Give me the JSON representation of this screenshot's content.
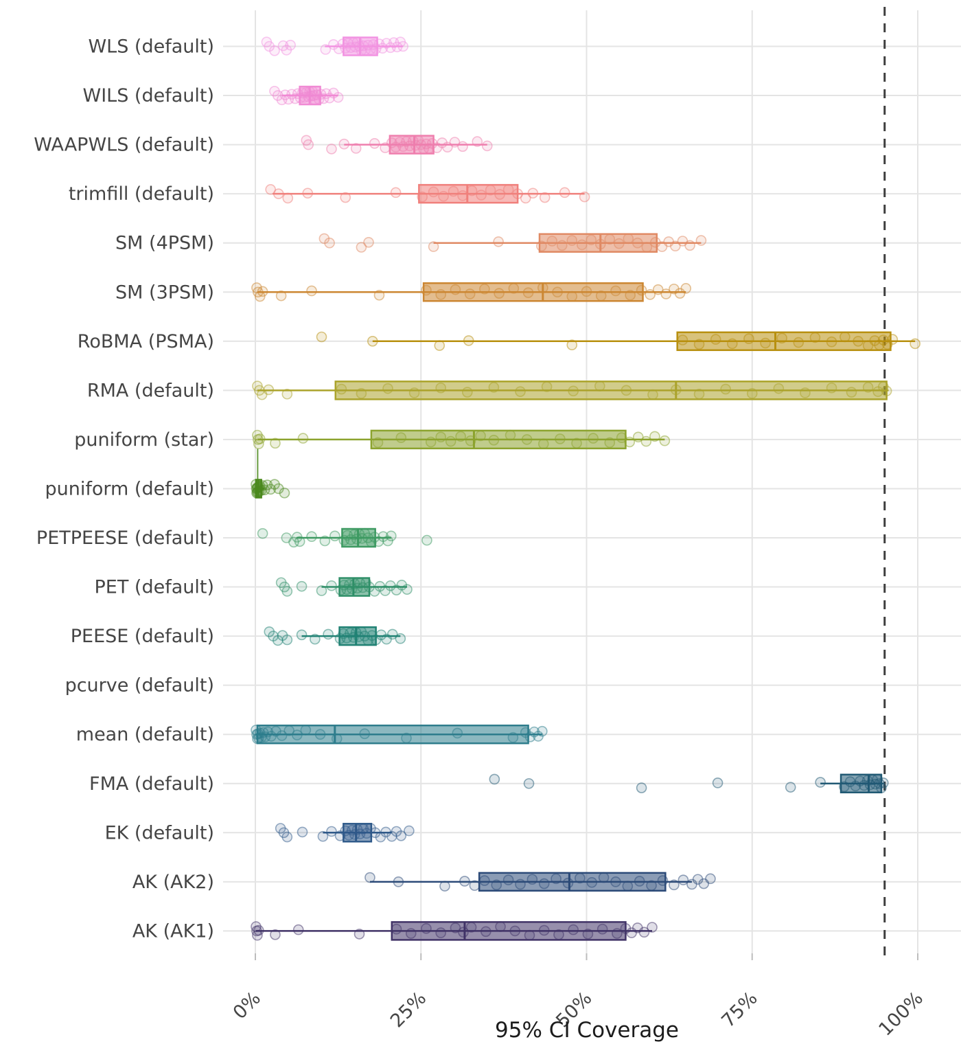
{
  "chart_data": {
    "type": "boxplot",
    "orientation": "horizontal",
    "title": "",
    "xlabel": "95% CI Coverage",
    "ylabel": "",
    "xlim": [
      0,
      100
    ],
    "grid": true,
    "x_ticks": [
      {
        "value": 0,
        "label": "0%"
      },
      {
        "value": 25,
        "label": "25%"
      },
      {
        "value": 50,
        "label": "50%"
      },
      {
        "value": 75,
        "label": "75%"
      },
      {
        "value": 100,
        "label": "100%"
      }
    ],
    "reference_line": {
      "value": 95,
      "style": "dashed"
    },
    "style": {
      "background": "#ffffff",
      "grid_color": "#e4e4e4",
      "tick_color": "#bdbdbd",
      "refline_color": "#3d3d3d",
      "axis_text_color": "#454545",
      "title_color": "#1c1c1c"
    },
    "rows": [
      {
        "label": "WLS (default)",
        "color": "#F293E2",
        "box": {
          "lo": 10.5,
          "q1": 13.3,
          "median": 15.8,
          "q3": 18.4,
          "hi": 22.3
        },
        "points": [
          1.7,
          2.1,
          2.9,
          4.2,
          4.7,
          5.3,
          10.6,
          11.8,
          12.6,
          13.2,
          13.6,
          14,
          14.4,
          14.8,
          15.1,
          15.4,
          15.7,
          16,
          16.3,
          16.6,
          17,
          17.4,
          17.8,
          18.2,
          18.7,
          19.2,
          19.8,
          20.4,
          20.9,
          21.4,
          21.9,
          22.3
        ]
      },
      {
        "label": "WILS (default)",
        "color": "#F08AD4",
        "box": {
          "lo": 4.0,
          "q1": 6.7,
          "median": 8.2,
          "q3": 9.8,
          "hi": 12.5
        },
        "points": [
          2.9,
          3.4,
          4,
          4.5,
          5,
          5.5,
          6,
          6.4,
          6.8,
          7.1,
          7.4,
          7.7,
          8,
          8.2,
          8.4,
          8.6,
          8.8,
          9,
          9.3,
          9.6,
          9.9,
          10.3,
          10.7,
          11.2,
          11.8,
          12.5
        ]
      },
      {
        "label": "WAAPWLS (default)",
        "color": "#EF7FAE",
        "box": {
          "lo": 13.4,
          "q1": 20.3,
          "median": 24.0,
          "q3": 26.9,
          "hi": 35.0
        },
        "points": [
          7.7,
          8,
          11.5,
          13.4,
          15.2,
          18,
          19.6,
          20.6,
          21.2,
          21.8,
          22.3,
          22.8,
          23.3,
          23.8,
          24.2,
          24.6,
          25,
          25.4,
          25.8,
          26.2,
          26.7,
          27.4,
          28.2,
          29,
          30.1,
          31.3,
          33.5,
          35
        ]
      },
      {
        "label": "trimfill (default)",
        "color": "#F0807C",
        "box": {
          "lo": 2.6,
          "q1": 24.7,
          "median": 32.0,
          "q3": 39.6,
          "hi": 49.7
        },
        "points": [
          2.3,
          3.5,
          4.9,
          7.9,
          13.6,
          21.2,
          25.2,
          26.9,
          28.4,
          29.9,
          31.3,
          32.7,
          34.1,
          35.5,
          36.9,
          38.2,
          39.6,
          40.8,
          41.9,
          43.7,
          46.7,
          49.7
        ]
      },
      {
        "label": "SM (4PSM)",
        "color": "#E08A64",
        "box": {
          "lo": 26.9,
          "q1": 42.9,
          "median": 52.1,
          "q3": 60.6,
          "hi": 67.3
        },
        "points": [
          10.4,
          11.2,
          16,
          17.1,
          26.9,
          36.7,
          43.2,
          44.8,
          46.3,
          47.8,
          49.3,
          50.7,
          52.1,
          53.5,
          54.9,
          56.3,
          57.7,
          59.1,
          60.4,
          61.4,
          62.4,
          63.4,
          64.5,
          65.6,
          67.3
        ]
      },
      {
        "label": "SM (3PSM)",
        "color": "#CC8733",
        "box": {
          "lo": 0.3,
          "q1": 25.4,
          "median": 43.4,
          "q3": 58.5,
          "hi": 65.0
        },
        "points": [
          0.2,
          0.4,
          0.7,
          1.1,
          3.9,
          8.5,
          18.7,
          25.8,
          28,
          30.2,
          32.4,
          34.6,
          36.8,
          39,
          41.2,
          43.4,
          45.6,
          47.8,
          50,
          52.2,
          54.4,
          56.6,
          58.3,
          59.6,
          60.8,
          62,
          63.2,
          64.1,
          65
        ]
      },
      {
        "label": "RoBMA (PSMA)",
        "color": "#B8900F",
        "box": {
          "lo": 17.7,
          "q1": 63.7,
          "median": 78.5,
          "q3": 95.9,
          "hi": 99.6
        },
        "points": [
          10,
          17.7,
          27.8,
          32.2,
          47.8,
          64.5,
          67,
          69.5,
          72,
          74.5,
          77,
          79.5,
          82,
          84.5,
          87,
          89,
          91,
          92.5,
          93.5,
          94.2,
          94.8,
          95.4,
          96.2,
          99.6
        ]
      },
      {
        "label": "RMA (default)",
        "color": "#ABA32B",
        "box": {
          "lo": 0.3,
          "q1": 12.1,
          "median": 63.5,
          "q3": 95.3,
          "hi": 95.6
        },
        "points": [
          0.3,
          0.6,
          1,
          2,
          4.8,
          13,
          16,
          20,
          24,
          28,
          32,
          36,
          40,
          44,
          48,
          52,
          56,
          60,
          63.5,
          67,
          71,
          75,
          79,
          83,
          87,
          90,
          92.5,
          94,
          94.8,
          95.3
        ]
      },
      {
        "label": "puniform (star)",
        "color": "#8CA32E",
        "box": {
          "lo": 0.4,
          "q1": 17.5,
          "median": 33.0,
          "q3": 55.9,
          "hi": 61.8
        },
        "points": [
          0.3,
          0.4,
          0.5,
          0.7,
          3,
          7.2,
          18.5,
          22,
          26.5,
          28,
          29.5,
          31,
          32.5,
          34,
          36,
          38.5,
          41,
          43.5,
          46,
          48.5,
          51,
          53.5,
          55.3,
          56.5,
          57.8,
          59,
          60.3,
          61.8
        ]
      },
      {
        "label": "puniform (default)",
        "color": "#4C8A1D",
        "spike": true,
        "box": {
          "lo": 0.0,
          "q1": 0.1,
          "median": 0.4,
          "q3": 0.9,
          "hi": 1.4
        },
        "points": [
          0.1,
          0.15,
          0.2,
          0.25,
          0.3,
          0.35,
          0.4,
          0.5,
          0.6,
          0.7,
          0.9,
          1.1,
          1.4,
          1.8,
          2.3,
          2.9,
          3.5,
          4.4
        ]
      },
      {
        "label": "PETPEESE (default)",
        "color": "#3E9A62",
        "box": {
          "lo": 6.2,
          "q1": 13.1,
          "median": 15.5,
          "q3": 18.1,
          "hi": 20.5
        },
        "points": [
          1.1,
          4.7,
          5.8,
          6.3,
          6.7,
          8.5,
          10.5,
          12,
          13.4,
          13.9,
          14.4,
          14.9,
          15.3,
          15.7,
          16.1,
          16.5,
          17,
          17.5,
          18,
          18.6,
          19.3,
          20,
          20.5,
          25.9
        ]
      },
      {
        "label": "PET (default)",
        "color": "#2F8F68",
        "box": {
          "lo": 10.0,
          "q1": 12.7,
          "median": 14.8,
          "q3": 17.2,
          "hi": 22.9
        },
        "points": [
          3.9,
          4.4,
          4.8,
          7,
          10,
          11.5,
          12.9,
          13.4,
          13.8,
          14.2,
          14.6,
          15,
          15.4,
          15.8,
          16.2,
          16.7,
          17.2,
          18,
          18.8,
          19.6,
          20.4,
          21.3,
          22.1,
          22.9
        ]
      },
      {
        "label": "PEESE (default)",
        "color": "#218274",
        "box": {
          "lo": 7.0,
          "q1": 12.7,
          "median": 15.2,
          "q3": 18.2,
          "hi": 21.9
        },
        "points": [
          2.1,
          2.7,
          3.4,
          4.1,
          4.8,
          7,
          9,
          11,
          12.8,
          13.3,
          13.8,
          14.3,
          14.8,
          15.2,
          15.6,
          16,
          16.5,
          17,
          17.6,
          18.2,
          19,
          19.8,
          20.7,
          21.9
        ]
      },
      {
        "label": "pcurve (default)",
        "color": "#1E827E",
        "box": null,
        "points": []
      },
      {
        "label": "mean (default)",
        "color": "#2E7D8C",
        "box": {
          "lo": 0.1,
          "q1": 0.3,
          "median": 12.0,
          "q3": 41.2,
          "hi": 43.3
        },
        "points": [
          0.1,
          0.2,
          0.3,
          0.4,
          0.5,
          0.7,
          0.9,
          1.2,
          1.5,
          1.9,
          2.4,
          3.1,
          4,
          5.1,
          6.3,
          7.6,
          9.8,
          12.3,
          16.5,
          22.8,
          30.5,
          38.9,
          40.8,
          41.5,
          42.1,
          42.7,
          43.3
        ]
      },
      {
        "label": "FMA (default)",
        "color": "#215A74",
        "box": {
          "lo": 85.3,
          "q1": 88.4,
          "median": 92.6,
          "q3": 94.5,
          "hi": 94.8
        },
        "points": [
          36.1,
          41.3,
          58.3,
          69.8,
          80.8,
          85.3,
          88.9,
          89.8,
          90.6,
          91.3,
          91.9,
          92.4,
          92.8,
          93.2,
          93.6,
          93.9,
          94.2,
          94.5,
          94.8
        ]
      },
      {
        "label": "EK (default)",
        "color": "#2F5A8A",
        "box": {
          "lo": 10.2,
          "q1": 13.3,
          "median": 15.2,
          "q3": 17.5,
          "hi": 20.6
        },
        "points": [
          3.8,
          4.3,
          4.8,
          7.1,
          10.2,
          11.5,
          12.8,
          13.6,
          14.1,
          14.6,
          15,
          15.4,
          15.8,
          16.3,
          16.8,
          17.4,
          18.1,
          18.9,
          19.7,
          20.6,
          21.3,
          22,
          23.2
        ]
      },
      {
        "label": "AK (AK2)",
        "color": "#2B4A78",
        "box": {
          "lo": 17.3,
          "q1": 33.8,
          "median": 47.4,
          "q3": 61.9,
          "hi": 65.9
        },
        "points": [
          17.3,
          21.6,
          28.6,
          31.6,
          33.1,
          34.6,
          36.4,
          38.2,
          40,
          41.8,
          43.6,
          45.4,
          47.2,
          49,
          50.8,
          52.6,
          54.4,
          56.2,
          58,
          59.8,
          61.5,
          63.2,
          64.6,
          65.9,
          66.8,
          67.7,
          68.7
        ]
      },
      {
        "label": "AK (AK1)",
        "color": "#413367",
        "box": {
          "lo": 0.1,
          "q1": 20.6,
          "median": 31.6,
          "q3": 55.9,
          "hi": 59.9
        },
        "points": [
          0.1,
          0.2,
          0.3,
          0.5,
          3,
          6.5,
          15.7,
          21.3,
          23.5,
          25.8,
          28,
          30.2,
          31.4,
          32.6,
          34.8,
          37,
          39.2,
          41.4,
          43.6,
          45.8,
          48,
          50.2,
          52.4,
          54.6,
          55.9,
          56.8,
          57.7,
          58.7,
          59.9
        ]
      }
    ]
  }
}
